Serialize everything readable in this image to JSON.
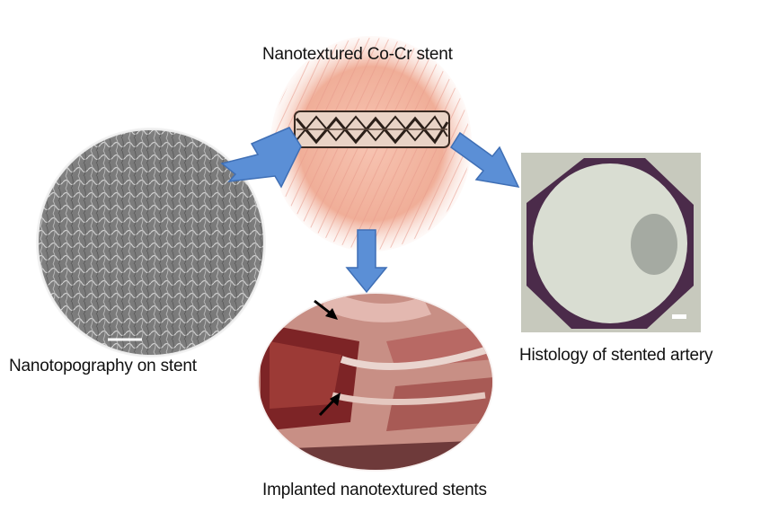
{
  "labels": {
    "center": "Nanotextured Co-Cr stent",
    "left": "Nanotopography on stent",
    "right": "Histology of stented artery",
    "bottom": "Implanted nanotextured stents"
  },
  "colors": {
    "arrow_fill": "#5b8fd6",
    "arrow_stroke": "#3f6fb5",
    "stent_background": "#f3b9a6",
    "sem_gray": "#8a8a8a",
    "histology_lumen": "#d9ddd2",
    "histology_wall": "#4b2b4a",
    "tissue_red": "#8b2c2c"
  },
  "icons": {
    "arrows": "block-arrow",
    "pointers": "black-arrow"
  }
}
